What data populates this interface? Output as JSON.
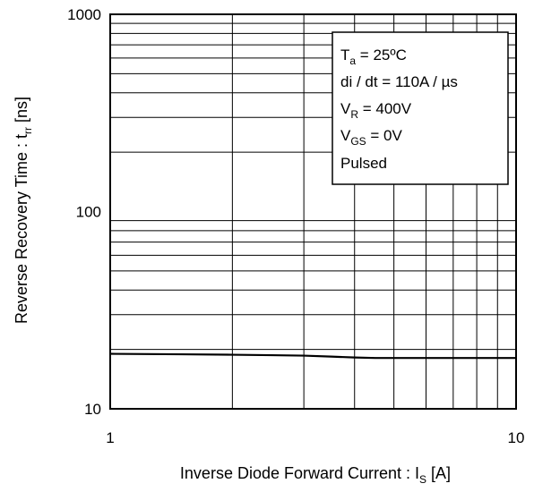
{
  "chart_data": {
    "type": "line",
    "title": "",
    "xlabel": {
      "main": "Inverse Diode  Forward Current : I",
      "sub": "S",
      "unit": " [A]"
    },
    "ylabel": {
      "main": "Reverse Recovery Time : t",
      "sub": "rr",
      "unit": " [ns]"
    },
    "x_scale": "log",
    "y_scale": "log",
    "xlim": [
      1,
      10
    ],
    "ylim": [
      10,
      1000
    ],
    "grid": true,
    "x_ticks": [
      {
        "value": 1,
        "label": "1"
      },
      {
        "value": 10,
        "label": "10"
      }
    ],
    "y_ticks": [
      {
        "value": 10,
        "label": "10"
      },
      {
        "value": 100,
        "label": "100"
      },
      {
        "value": 1000,
        "label": "1000"
      }
    ],
    "series": [
      {
        "color": "#000000",
        "x": [
          1,
          1.5,
          2,
          2.5,
          3,
          3.5,
          4,
          4.5,
          5,
          6,
          7,
          8,
          9,
          10
        ],
        "y": [
          19,
          18.9,
          18.8,
          18.7,
          18.6,
          18.4,
          18.2,
          18.1,
          18.1,
          18.1,
          18.1,
          18.1,
          18.1,
          18.1
        ]
      }
    ],
    "legend": "none",
    "annotation": {
      "position": "top-right",
      "lines": [
        {
          "main": "T",
          "sub": "a",
          "rest": " = 25ºC"
        },
        {
          "main": "di / dt = 110A / µs",
          "sub": "",
          "rest": ""
        },
        {
          "main": "V",
          "sub": "R",
          "rest": " = 400V"
        },
        {
          "main": "V",
          "sub": "GS",
          "rest": " = 0V"
        },
        {
          "main": "Pulsed",
          "sub": "",
          "rest": ""
        }
      ]
    }
  }
}
